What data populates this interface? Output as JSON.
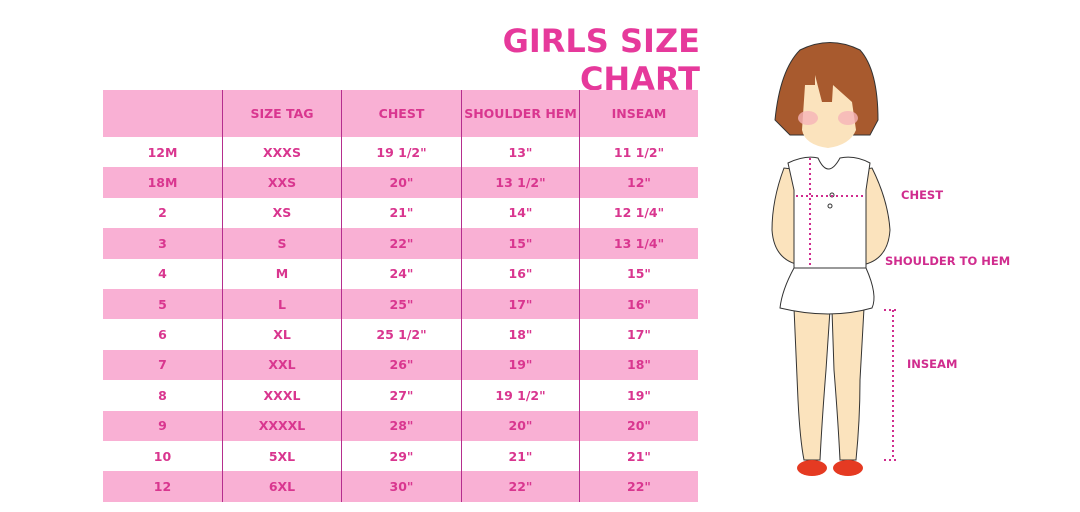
{
  "title": "GIRLS SIZE CHART",
  "table": {
    "headers": [
      "",
      "SIZE TAG",
      "CHEST",
      "SHOULDER HEM",
      "INSEAM"
    ],
    "rows": [
      [
        "12M",
        "XXXS",
        "19 1/2\"",
        "13\"",
        "11 1/2\""
      ],
      [
        "18M",
        "XXS",
        "20\"",
        "13 1/2\"",
        "12\""
      ],
      [
        "2",
        "XS",
        "21\"",
        "14\"",
        "12 1/4\""
      ],
      [
        "3",
        "S",
        "22\"",
        "15\"",
        "13 1/4\""
      ],
      [
        "4",
        "M",
        "24\"",
        "16\"",
        "15\""
      ],
      [
        "5",
        "L",
        "25\"",
        "17\"",
        "16\""
      ],
      [
        "6",
        "XL",
        "25 1/2\"",
        "18\"",
        "17\""
      ],
      [
        "7",
        "XXL",
        "26\"",
        "19\"",
        "18\""
      ],
      [
        "8",
        "XXXL",
        "27\"",
        "19 1/2\"",
        "19\""
      ],
      [
        "9",
        "XXXXL",
        "28\"",
        "20\"",
        "20\""
      ],
      [
        "10",
        "5XL",
        "29\"",
        "21\"",
        "21\""
      ],
      [
        "12",
        "6XL",
        "30\"",
        "22\"",
        "22\""
      ]
    ]
  },
  "figure": {
    "labels": {
      "chest": "CHEST",
      "shoulder_to_hem": "SHOULDER TO HEM",
      "inseam": "INSEAM"
    }
  },
  "colors": {
    "accent": "#e6399b",
    "row_pink": "#f9b0d4",
    "divider": "#b52e8e"
  }
}
